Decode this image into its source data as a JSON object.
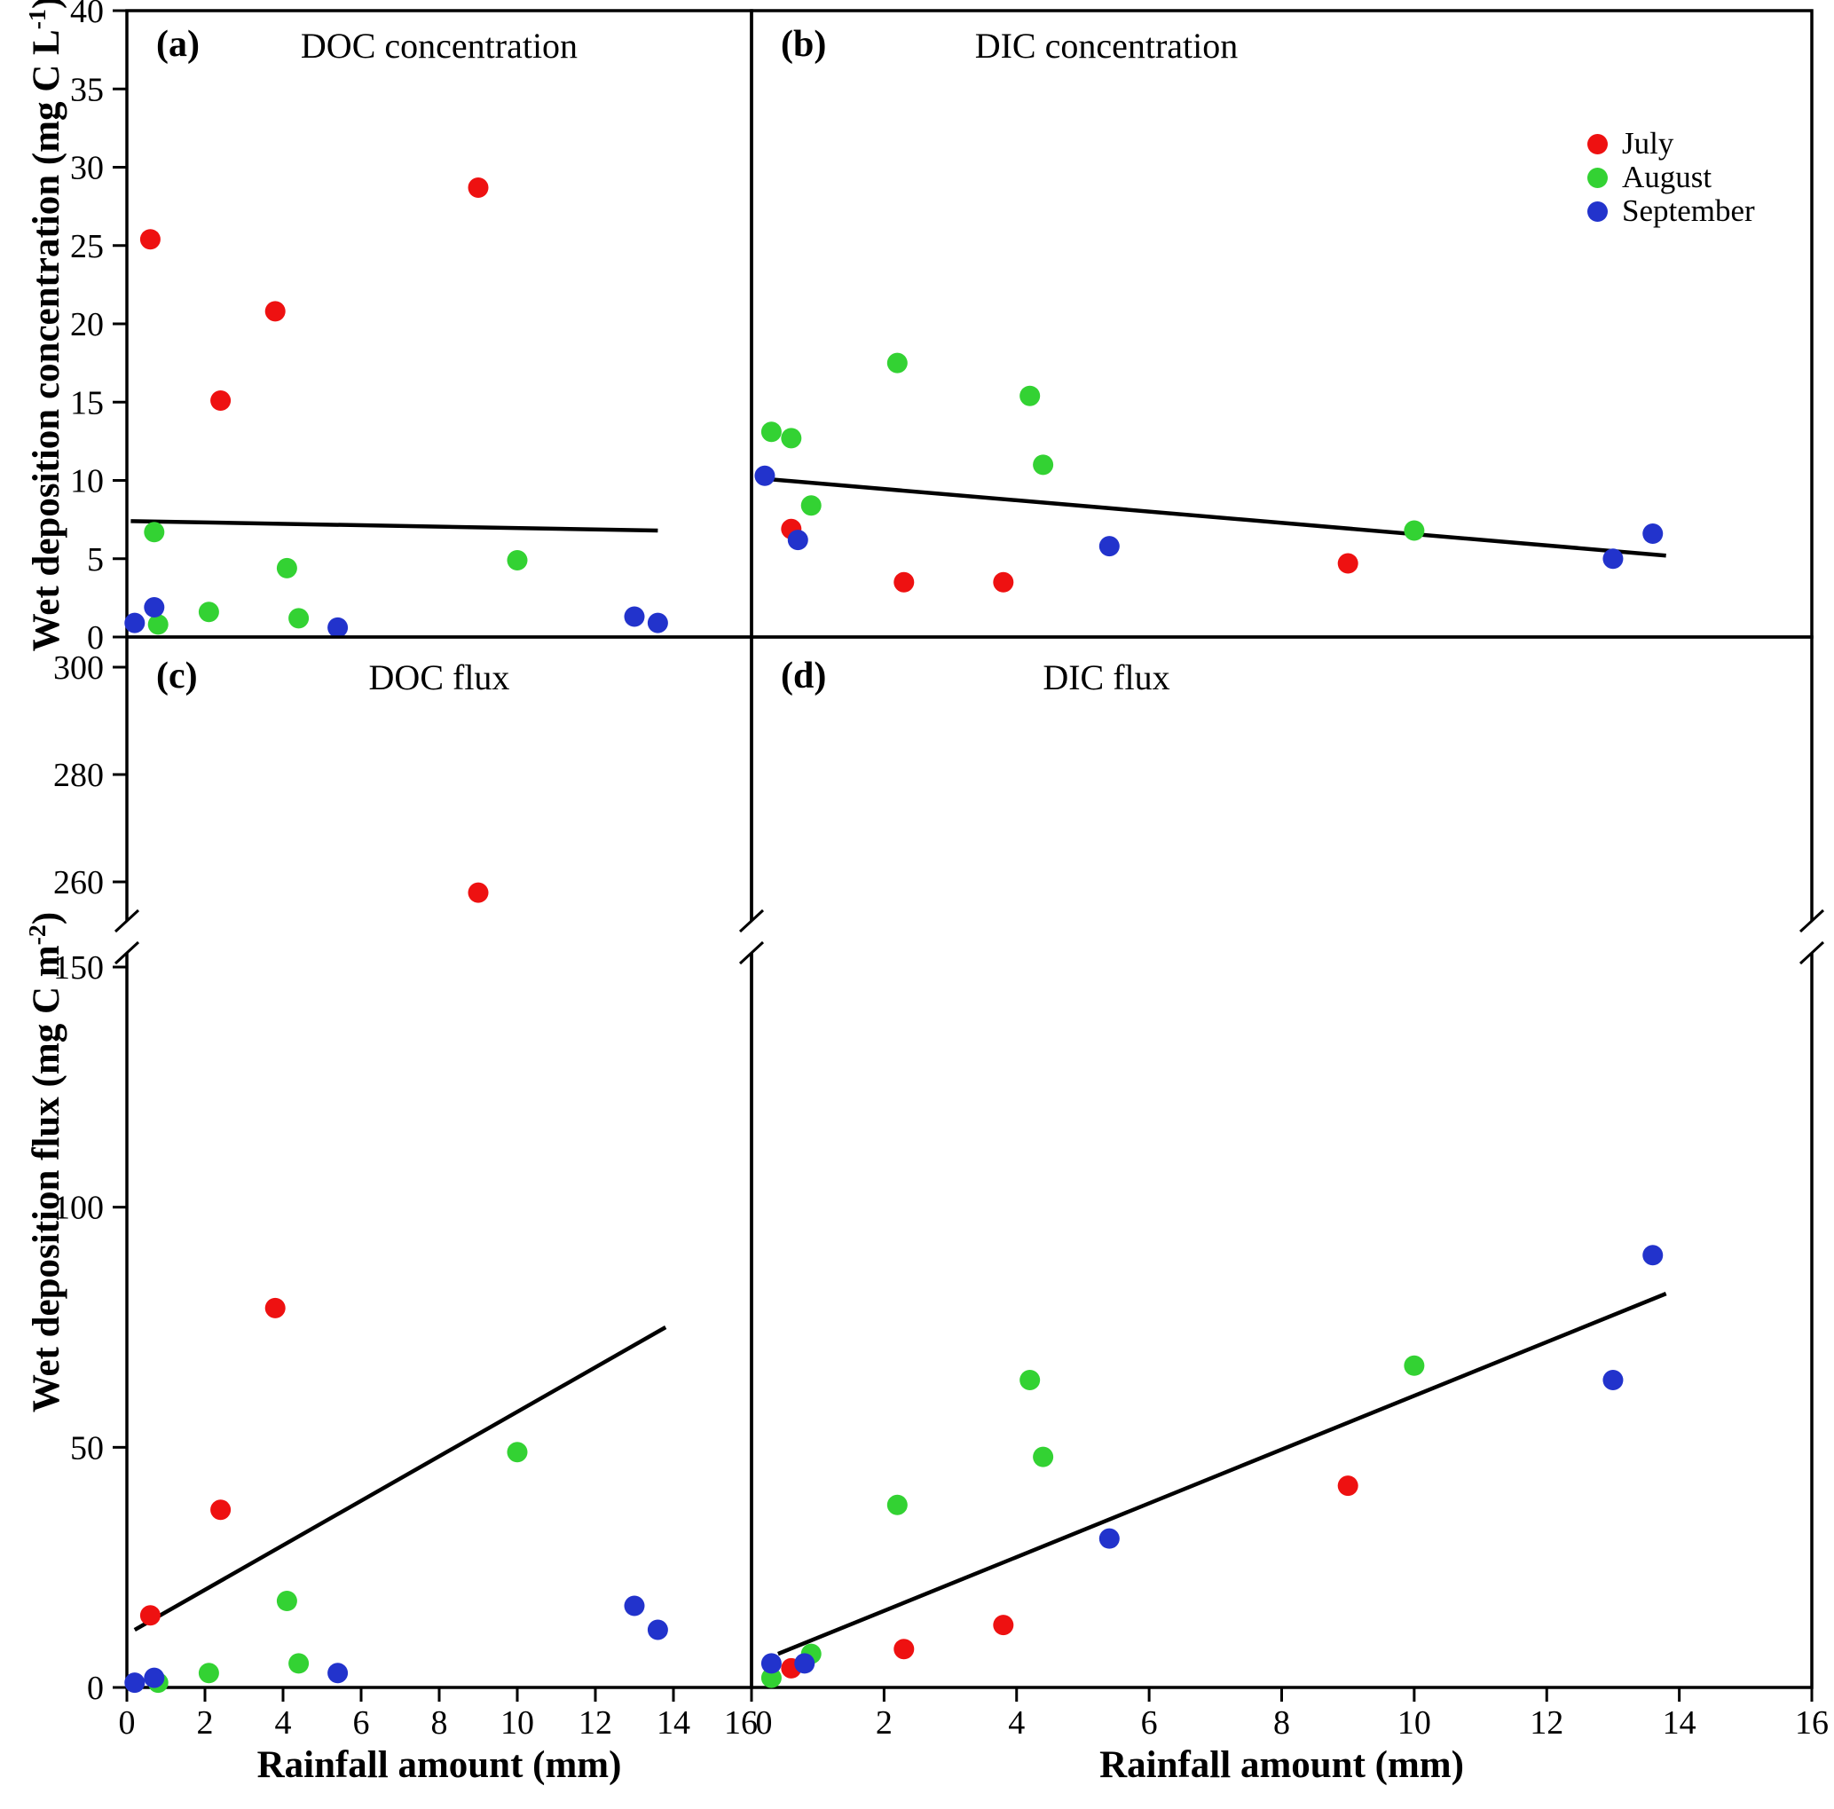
{
  "figure": {
    "background": "#ffffff",
    "axis_color": "#000000",
    "trend_line_color": "#000000"
  },
  "axes": {
    "x_title": "Rainfall amount (mm)",
    "x_range": [
      0,
      16
    ],
    "y_top": {
      "pre": "Wet deposition concentration (mg C L",
      "sup": "-1",
      "post": ")"
    },
    "y_bottom": {
      "pre": "Wet deposition flux (mg C m",
      "sup": "-2",
      "post": ")"
    }
  },
  "legend": {
    "position": "upper-right-panel-b",
    "items": [
      {
        "label": "July",
        "color": "#ee1111"
      },
      {
        "label": "August",
        "color": "#33d233"
      },
      {
        "label": "September",
        "color": "#2233cc"
      }
    ]
  },
  "chart_data": [
    {
      "id": "a",
      "panel_label": "(a)",
      "title": "DOC concentration",
      "type": "scatter",
      "x_range": [
        0,
        16
      ],
      "y_axis": {
        "show_labels": true,
        "broken": false,
        "segments": [
          {
            "range": [
              0,
              40
            ],
            "ticks": [
              0,
              5,
              10,
              15,
              20,
              25,
              30,
              35,
              40
            ]
          }
        ]
      },
      "series": [
        {
          "name": "July",
          "points": [
            [
              0.6,
              25.4
            ],
            [
              2.4,
              15.1
            ],
            [
              3.8,
              20.8
            ],
            [
              9.0,
              28.7
            ]
          ]
        },
        {
          "name": "August",
          "points": [
            [
              0.7,
              6.7
            ],
            [
              0.8,
              0.8
            ],
            [
              2.1,
              1.6
            ],
            [
              4.1,
              4.4
            ],
            [
              4.4,
              1.2
            ],
            [
              10.0,
              4.9
            ]
          ]
        },
        {
          "name": "September",
          "points": [
            [
              0.2,
              0.9
            ],
            [
              0.7,
              1.9
            ],
            [
              5.4,
              0.6
            ],
            [
              13.0,
              1.3
            ],
            [
              13.6,
              0.9
            ]
          ]
        }
      ],
      "trend": {
        "x": [
          0.1,
          13.6
        ],
        "y": [
          7.4,
          6.8
        ]
      }
    },
    {
      "id": "b",
      "panel_label": "(b)",
      "title": "DIC concentration",
      "type": "scatter",
      "x_range": [
        0,
        16
      ],
      "y_axis": {
        "show_labels": false,
        "broken": false,
        "segments": [
          {
            "range": [
              0,
              40
            ],
            "ticks": [
              0,
              5,
              10,
              15,
              20,
              25,
              30,
              35,
              40
            ]
          }
        ]
      },
      "series": [
        {
          "name": "July",
          "points": [
            [
              0.6,
              6.9
            ],
            [
              2.3,
              3.5
            ],
            [
              3.8,
              3.5
            ],
            [
              9.0,
              4.7
            ]
          ]
        },
        {
          "name": "August",
          "points": [
            [
              0.3,
              13.1
            ],
            [
              0.6,
              12.7
            ],
            [
              0.9,
              8.4
            ],
            [
              2.2,
              17.5
            ],
            [
              4.2,
              15.4
            ],
            [
              4.4,
              11.0
            ],
            [
              10.0,
              6.8
            ]
          ]
        },
        {
          "name": "September",
          "points": [
            [
              0.2,
              10.3
            ],
            [
              0.7,
              6.2
            ],
            [
              5.4,
              5.8
            ],
            [
              13.0,
              5.0
            ],
            [
              13.6,
              6.6
            ]
          ]
        }
      ],
      "trend": {
        "x": [
          0.2,
          13.8
        ],
        "y": [
          10.1,
          5.2
        ]
      }
    },
    {
      "id": "c",
      "panel_label": "(c)",
      "title": "DOC flux",
      "type": "scatter",
      "x_range": [
        0,
        16
      ],
      "x_ticks": {
        "values": [
          0,
          2,
          4,
          6,
          8,
          10,
          12,
          14,
          16
        ],
        "show_labels": true
      },
      "y_axis": {
        "show_labels": true,
        "broken": true,
        "segments": [
          {
            "range": [
              0,
              150
            ],
            "ticks": [
              0,
              50,
              100,
              150
            ]
          },
          {
            "range": [
              260,
              300
            ],
            "ticks": [
              260,
              280,
              300
            ]
          }
        ]
      },
      "series": [
        {
          "name": "July",
          "points": [
            [
              0.6,
              15
            ],
            [
              2.4,
              37
            ],
            [
              3.8,
              79
            ],
            [
              9.0,
              258
            ]
          ]
        },
        {
          "name": "August",
          "points": [
            [
              0.8,
              1
            ],
            [
              2.1,
              3
            ],
            [
              4.1,
              18
            ],
            [
              4.4,
              5
            ],
            [
              10.0,
              49
            ]
          ]
        },
        {
          "name": "September",
          "points": [
            [
              0.2,
              1
            ],
            [
              0.7,
              2
            ],
            [
              5.4,
              3
            ],
            [
              13.0,
              17
            ],
            [
              13.6,
              12
            ]
          ]
        }
      ],
      "trend": {
        "x": [
          0.2,
          13.8
        ],
        "y": [
          12,
          75
        ]
      }
    },
    {
      "id": "d",
      "panel_label": "(d)",
      "title": "DIC flux",
      "type": "scatter",
      "x_range": [
        0,
        16
      ],
      "x_ticks": {
        "values": [
          0,
          2,
          4,
          6,
          8,
          10,
          12,
          14,
          16
        ],
        "show_labels": true
      },
      "y_axis": {
        "show_labels": false,
        "broken": true,
        "segments": [
          {
            "range": [
              0,
              150
            ],
            "ticks": [
              0,
              50,
              100,
              150
            ]
          },
          {
            "range": [
              260,
              300
            ],
            "ticks": [
              260,
              280,
              300
            ]
          }
        ]
      },
      "series": [
        {
          "name": "July",
          "points": [
            [
              0.6,
              4
            ],
            [
              2.3,
              8
            ],
            [
              3.8,
              13
            ],
            [
              9.0,
              42
            ]
          ]
        },
        {
          "name": "August",
          "points": [
            [
              0.3,
              2
            ],
            [
              0.9,
              7
            ],
            [
              2.2,
              38
            ],
            [
              4.2,
              64
            ],
            [
              4.4,
              48
            ],
            [
              10.0,
              67
            ]
          ]
        },
        {
          "name": "September",
          "points": [
            [
              0.3,
              5
            ],
            [
              0.8,
              5
            ],
            [
              5.4,
              31
            ],
            [
              13.0,
              64
            ],
            [
              13.6,
              90
            ]
          ]
        }
      ],
      "trend": {
        "x": [
          0.4,
          13.8
        ],
        "y": [
          7,
          82
        ]
      }
    }
  ]
}
